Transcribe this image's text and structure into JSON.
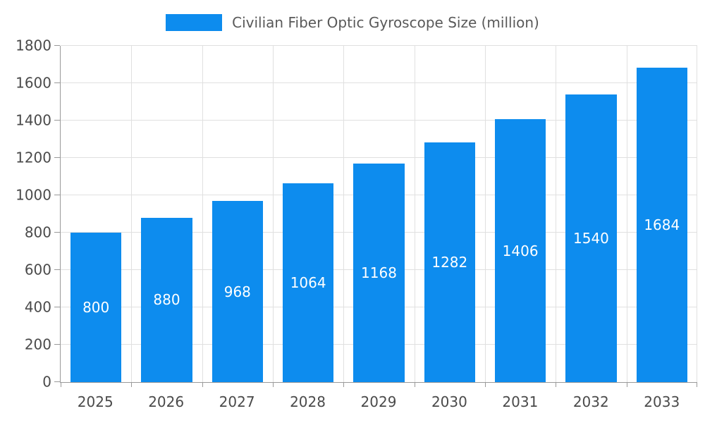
{
  "chart_data": {
    "type": "bar",
    "title": "Civilian Fiber Optic Gyroscope Size (million)",
    "categories": [
      "2025",
      "2026",
      "2027",
      "2028",
      "2029",
      "2030",
      "2031",
      "2032",
      "2033"
    ],
    "values": [
      800,
      880,
      968,
      1064,
      1168,
      1282,
      1406,
      1540,
      1684
    ],
    "xlabel": "",
    "ylabel": "",
    "ylim": [
      0,
      1800
    ],
    "yticks": [
      0,
      200,
      400,
      600,
      800,
      1000,
      1200,
      1400,
      1600,
      1800
    ],
    "bar_color": "#0d8cee",
    "value_label_color": "#ffffff",
    "grid": true,
    "legend_position": "top"
  }
}
